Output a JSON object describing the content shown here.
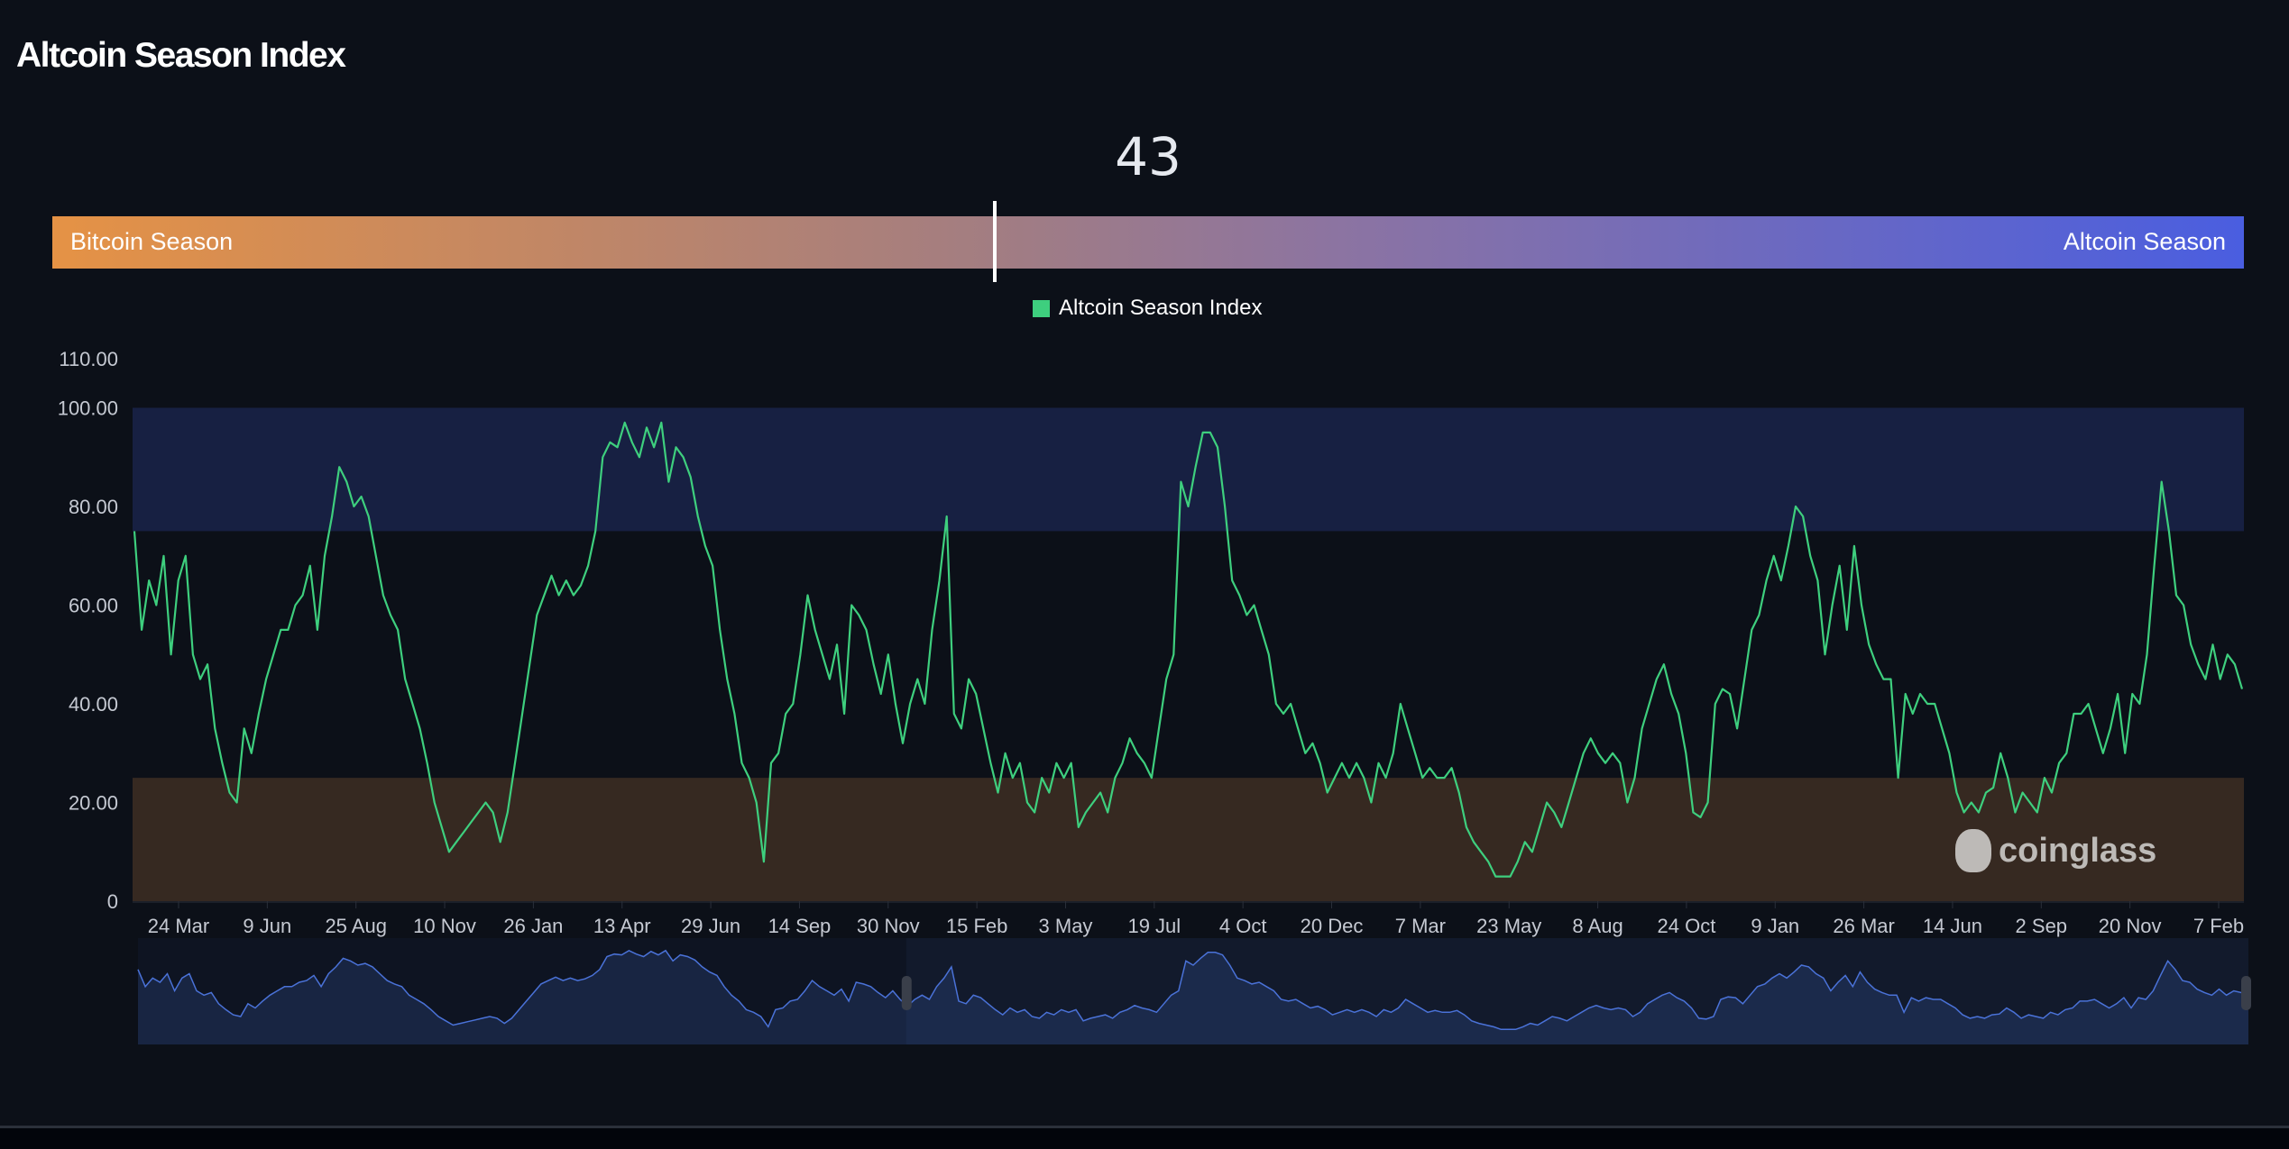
{
  "header": {
    "title": "Altcoin Season Index"
  },
  "current_value": "43",
  "gauge": {
    "left_label": "Bitcoin Season",
    "right_label": "Altcoin Season",
    "value_fraction": 0.43
  },
  "watermark": "coinglass",
  "colors": {
    "line": "#3ecf7e",
    "altcoin_band": "#172042",
    "bitcoin_band": "#362921",
    "navigator_line": "#4a72d8"
  },
  "chart_data": {
    "type": "line",
    "title": "",
    "legend": {
      "position": "top-center",
      "entries": [
        "Altcoin Season Index"
      ]
    },
    "series": [
      {
        "name": "Altcoin Season Index",
        "values": [
          75,
          55,
          65,
          60,
          70,
          50,
          65,
          70,
          50,
          45,
          48,
          35,
          28,
          22,
          20,
          35,
          30,
          38,
          45,
          50,
          55,
          55,
          60,
          62,
          68,
          55,
          70,
          78,
          88,
          85,
          80,
          82,
          78,
          70,
          62,
          58,
          55,
          45,
          40,
          35,
          28,
          20,
          15,
          10,
          12,
          14,
          16,
          18,
          20,
          18,
          12,
          18,
          28,
          38,
          48,
          58,
          62,
          66,
          62,
          65,
          62,
          64,
          68,
          75,
          90,
          93,
          92,
          97,
          93,
          90,
          96,
          92,
          97,
          85,
          92,
          90,
          86,
          78,
          72,
          68,
          55,
          45,
          38,
          28,
          25,
          20,
          8,
          28,
          30,
          38,
          40,
          50,
          62,
          55,
          50,
          45,
          52,
          38,
          60,
          58,
          55,
          48,
          42,
          50,
          40,
          32,
          40,
          45,
          40,
          55,
          65,
          78,
          38,
          35,
          45,
          42,
          35,
          28,
          22,
          30,
          25,
          28,
          20,
          18,
          25,
          22,
          28,
          25,
          28,
          15,
          18,
          20,
          22,
          18,
          25,
          28,
          33,
          30,
          28,
          25,
          35,
          45,
          50,
          85,
          80,
          88,
          95,
          95,
          92,
          80,
          65,
          62,
          58,
          60,
          55,
          50,
          40,
          38,
          40,
          35,
          30,
          32,
          28,
          22,
          25,
          28,
          25,
          28,
          25,
          20,
          28,
          25,
          30,
          40,
          35,
          30,
          25,
          27,
          25,
          25,
          27,
          22,
          15,
          12,
          10,
          8,
          5,
          5,
          5,
          8,
          12,
          10,
          15,
          20,
          18,
          15,
          20,
          25,
          30,
          33,
          30,
          28,
          30,
          28,
          20,
          25,
          35,
          40,
          45,
          48,
          42,
          38,
          30,
          18,
          17,
          20,
          40,
          43,
          42,
          35,
          45,
          55,
          58,
          65,
          70,
          65,
          72,
          80,
          78,
          70,
          65,
          50,
          60,
          68,
          55,
          72,
          60,
          52,
          48,
          45,
          45,
          25,
          42,
          38,
          42,
          40,
          40,
          35,
          30,
          22,
          18,
          20,
          18,
          22,
          23,
          30,
          25,
          18,
          22,
          20,
          18,
          25,
          22,
          28,
          30,
          38,
          38,
          40,
          35,
          30,
          35,
          42,
          30,
          42,
          40,
          50,
          68,
          85,
          75,
          62,
          60,
          52,
          48,
          45,
          52,
          45,
          50,
          48,
          43
        ]
      }
    ],
    "x_tick_labels": [
      "24 Mar",
      "9 Jun",
      "25 Aug",
      "10 Nov",
      "26 Jan",
      "13 Apr",
      "29 Jun",
      "14 Sep",
      "30 Nov",
      "15 Feb",
      "3 May",
      "19 Jul",
      "4 Oct",
      "20 Dec",
      "7 Mar",
      "23 May",
      "8 Aug",
      "24 Oct",
      "9 Jan",
      "26 Mar",
      "14 Jun",
      "2 Sep",
      "20 Nov",
      "7 Feb"
    ],
    "y_tick_labels": [
      "0",
      "20.00",
      "40.00",
      "60.00",
      "80.00",
      "100.00",
      "110.00"
    ],
    "y_ticks": [
      0,
      20,
      40,
      60,
      80,
      100,
      110
    ],
    "ylim": [
      0,
      110
    ],
    "bands": [
      {
        "from": 75,
        "to": 100,
        "meaning": "altcoin season"
      },
      {
        "from": 0,
        "to": 25,
        "meaning": "bitcoin season"
      }
    ],
    "grid": false,
    "navigator": {
      "selected_range_fraction": [
        0.364,
        1.0
      ]
    }
  }
}
